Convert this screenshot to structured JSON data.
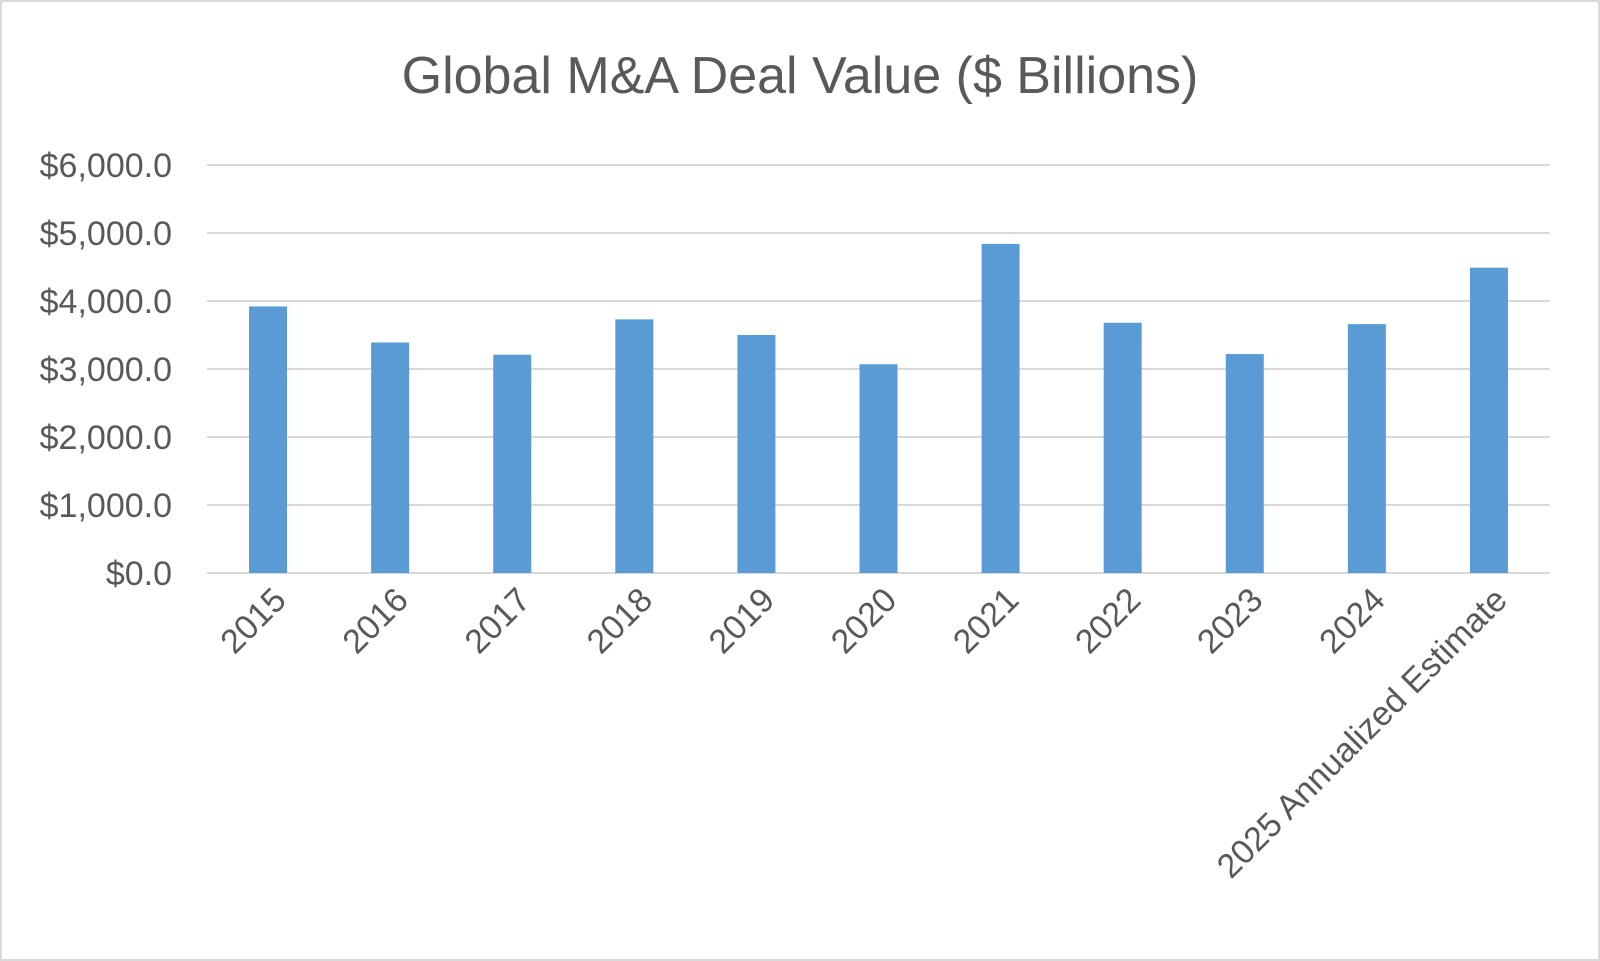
{
  "chart_data": {
    "type": "bar",
    "title": "Global M&A Deal Value ($ Billions)",
    "xlabel": "",
    "ylabel": "",
    "categories": [
      "2015",
      "2016",
      "2017",
      "2018",
      "2019",
      "2020",
      "2021",
      "2022",
      "2023",
      "2024",
      "2025 Annualized Estimate"
    ],
    "series": [
      {
        "name": "Global M&A Deal Value",
        "values": [
          3920,
          3390,
          3210,
          3730,
          3500,
          3070,
          4840,
          3680,
          3220,
          3660,
          4490
        ],
        "color": "#5b9bd5"
      }
    ],
    "ylim": [
      0,
      6000
    ],
    "yticks": [
      {
        "value": 0,
        "label": "$0.0"
      },
      {
        "value": 1000,
        "label": "$1,000.0"
      },
      {
        "value": 2000,
        "label": "$2,000.0"
      },
      {
        "value": 3000,
        "label": "$3,000.0"
      },
      {
        "value": 4000,
        "label": "$4,000.0"
      },
      {
        "value": 5000,
        "label": "$5,000.0"
      },
      {
        "value": 6000,
        "label": "$6,000.0"
      }
    ],
    "grid": true,
    "legend": "none",
    "colors": {
      "bar": "#5b9bd5",
      "grid": "#d9d9d9",
      "text": "#595959"
    }
  }
}
